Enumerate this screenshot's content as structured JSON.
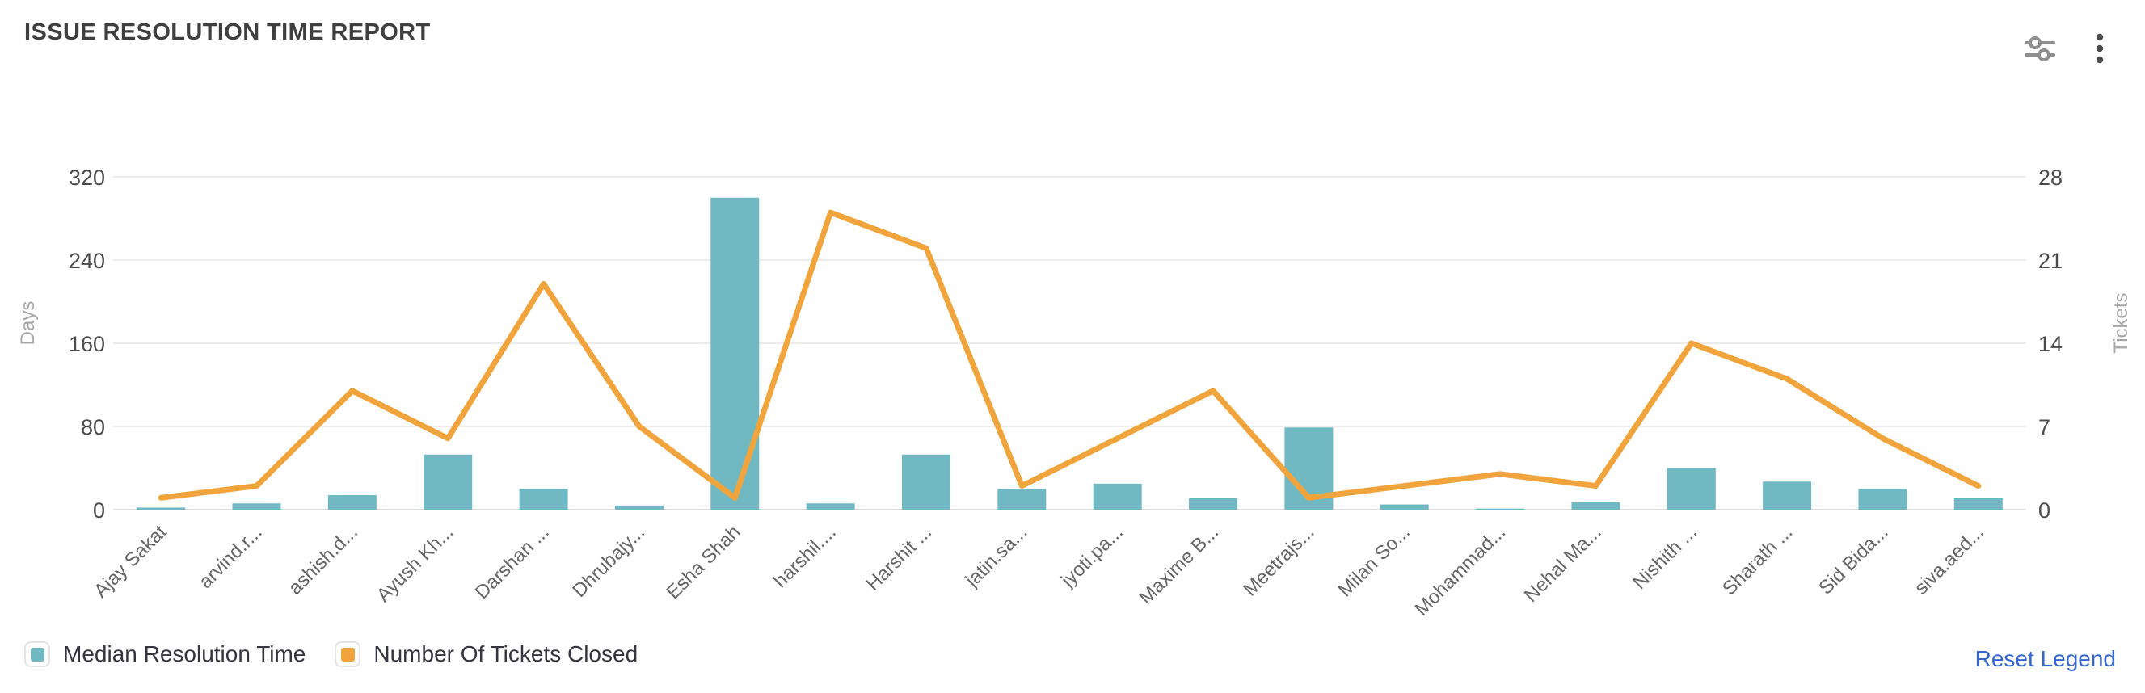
{
  "header": {
    "title": "ISSUE RESOLUTION TIME REPORT",
    "icons": [
      {
        "name": "chart-settings-sliders-icon"
      },
      {
        "name": "more-options-kebab-icon"
      }
    ]
  },
  "legend": {
    "items": [
      {
        "label": "Median Resolution Time",
        "color": "#70b9c3"
      },
      {
        "label": "Number Of Tickets Closed",
        "color": "#f2a43c"
      }
    ],
    "reset_label": "Reset Legend"
  },
  "colors": {
    "bar": "#70b9c3",
    "line": "#f2a43c",
    "gridline": "#ececec",
    "axis_zero_line": "#dcdcdc",
    "tick_label": "#4c4c4c",
    "category_label": "#666666",
    "axis_name": "#a6a6a6",
    "title": "#3f3f3f",
    "link": "#3566d0"
  },
  "chart_data": {
    "type": "bar+line",
    "title": "ISSUE RESOLUTION TIME REPORT",
    "categories": [
      "Ajay Sakat",
      "arvind.r...",
      "ashish.d...",
      "Ayush Kh...",
      "Darshan ...",
      "Dhrubajy...",
      "Esha Shah",
      "harshil....",
      "Harshit ...",
      "jatin.sa...",
      "jyoti.pa...",
      "Maxime B...",
      "Meetrajs...",
      "Milan So...",
      "Mohammad...",
      "Nehal Ma...",
      "Nishith ...",
      "Sharath ...",
      "Sid Bida...",
      "siva.aed..."
    ],
    "series": [
      {
        "name": "Median Resolution Time",
        "type": "bar",
        "axis": "left",
        "unit": "Days",
        "values": [
          2,
          6,
          14,
          53,
          20,
          4,
          300,
          6,
          53,
          20,
          25,
          11,
          79,
          5,
          1,
          7,
          40,
          27,
          20,
          11
        ]
      },
      {
        "name": "Number Of Tickets Closed",
        "type": "line",
        "axis": "right",
        "unit": "Tickets",
        "values": [
          1,
          2,
          10,
          6,
          19,
          7,
          1,
          25,
          22,
          2,
          6,
          10,
          1,
          2,
          3,
          2,
          14,
          11,
          6,
          2
        ]
      }
    ],
    "left_axis": {
      "name": "Days",
      "ticks": [
        0,
        80,
        160,
        240,
        320
      ],
      "min": 0,
      "max": 320
    },
    "right_axis": {
      "name": "Tickets",
      "ticks": [
        0,
        7,
        14,
        21,
        28
      ],
      "min": 0,
      "max": 28
    },
    "grid": true,
    "x_label_rotation": 45,
    "legend_position": "bottom-left"
  }
}
